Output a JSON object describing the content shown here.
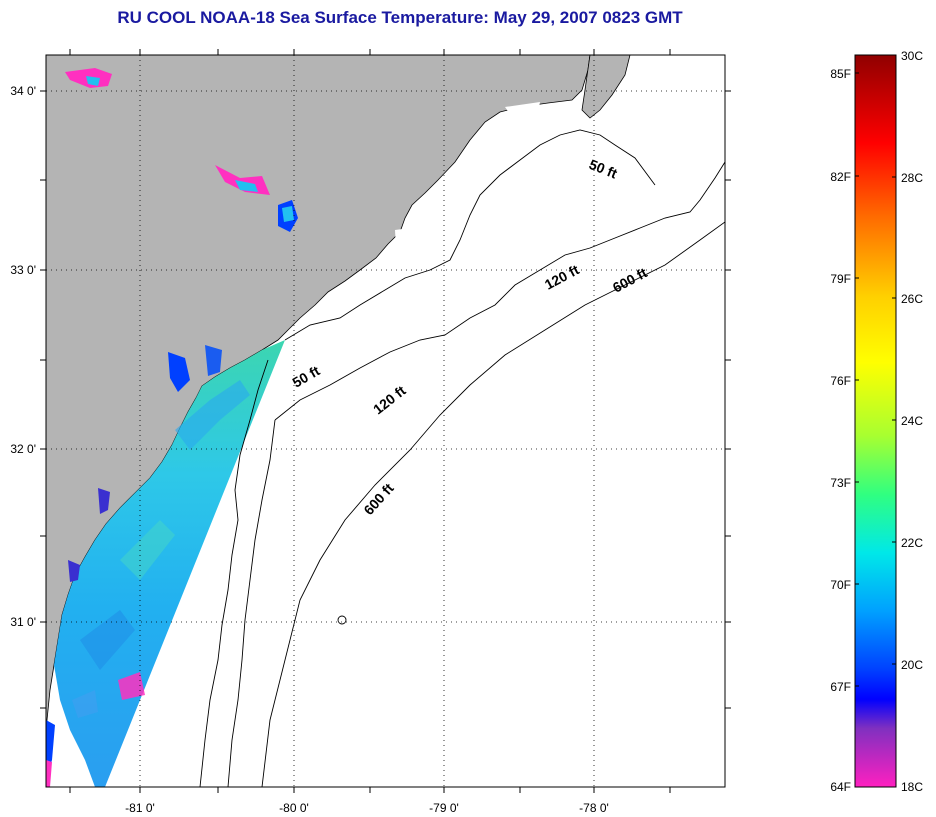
{
  "title": "RU COOL  NOAA-18  Sea Surface Temperature:  May 29, 2007 0823 GMT",
  "map": {
    "lon_ticks": [
      {
        "value": -81,
        "label": "-81 0'"
      },
      {
        "value": -80,
        "label": "-80 0'"
      },
      {
        "value": -79,
        "label": "-79 0'"
      },
      {
        "value": -78,
        "label": "-78 0'"
      }
    ],
    "lat_ticks": [
      {
        "value": 34,
        "label": "34 0'"
      },
      {
        "value": 33,
        "label": "33 0'"
      },
      {
        "value": 32,
        "label": "32 0'"
      },
      {
        "value": 31,
        "label": "31 0'"
      }
    ],
    "lon_range": [
      -81.5,
      -77.2
    ],
    "lat_range": [
      30.2,
      34.2
    ],
    "contour_labels": [
      {
        "text": "50 ft"
      },
      {
        "text": "120 ft"
      },
      {
        "text": "600 ft"
      },
      {
        "text": "50 ft"
      },
      {
        "text": "120 ft"
      },
      {
        "text": "600 ft"
      }
    ],
    "colors": {
      "land": "#b4b4b4",
      "ocean": "#ffffff",
      "grid": "#000000",
      "coastline": "#000000"
    }
  },
  "colorbar": {
    "fahrenheit_labels": [
      "85F",
      "82F",
      "79F",
      "76F",
      "73F",
      "70F",
      "67F",
      "64F"
    ],
    "celsius_labels": [
      "30C",
      "28C",
      "26C",
      "24C",
      "22C",
      "20C",
      "18C"
    ]
  }
}
